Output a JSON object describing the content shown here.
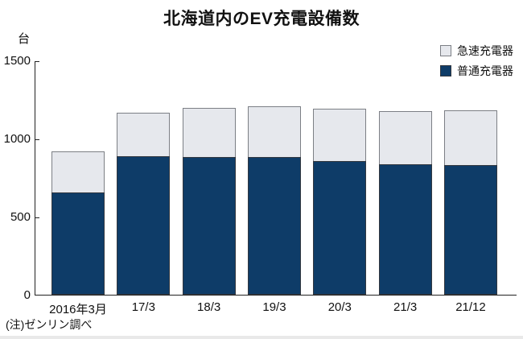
{
  "chart": {
    "title": "北海道内のEV充電設備数",
    "unit_label": "台",
    "note": "(注)ゼンリン調べ",
    "colors": {
      "quick_charger": "#e6e8ed",
      "normal_charger": "#0e3c68",
      "axis": "#222222"
    },
    "legend": [
      {
        "label": "急速充電器",
        "color": "#e6e8ed"
      },
      {
        "label": "普通充電器",
        "color": "#0e3c68"
      }
    ]
  },
  "chart_data": {
    "type": "bar",
    "stacked": true,
    "title": "北海道内のEV充電設備数",
    "categories": [
      "2016年3月",
      "17/3",
      "18/3",
      "19/3",
      "20/3",
      "21/3",
      "21/12"
    ],
    "series": [
      {
        "name": "普通充電器",
        "color": "#0e3c68",
        "values": [
          655,
          890,
          885,
          885,
          860,
          840,
          835
        ]
      },
      {
        "name": "急速充電器",
        "color": "#e6e8ed",
        "values": [
          265,
          280,
          315,
          325,
          335,
          340,
          350
        ]
      }
    ],
    "totals": [
      920,
      1170,
      1200,
      1210,
      1195,
      1180,
      1185
    ],
    "xlabel": "",
    "ylabel": "台",
    "ylim": [
      0,
      1500
    ],
    "y_ticks": [
      0,
      500,
      1000,
      1500
    ],
    "grid": false,
    "legend_position": "top-right",
    "note": "(注)ゼンリン調べ"
  }
}
